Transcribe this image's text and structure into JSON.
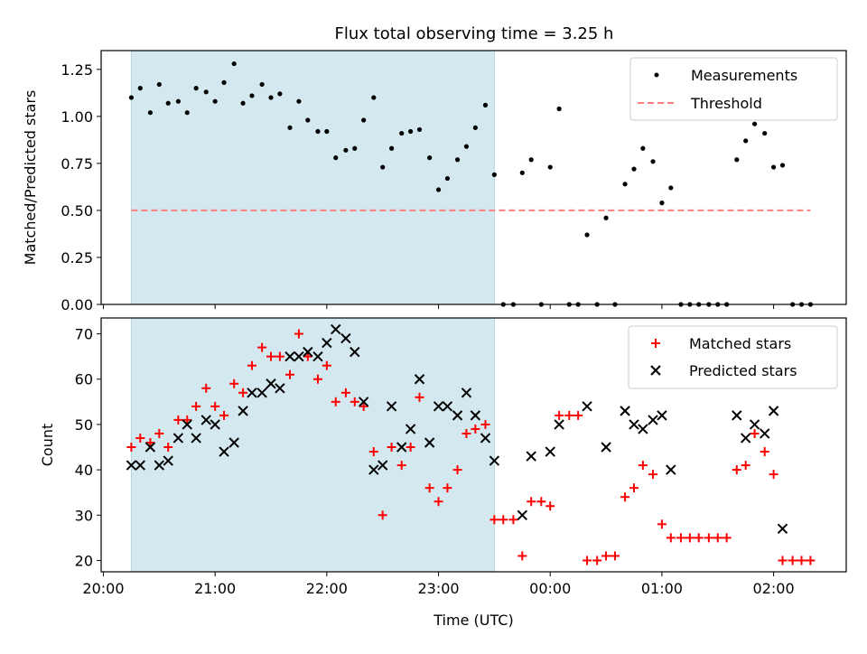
{
  "figure": {
    "title": "Flux total observing time = 3.25 h"
  },
  "chart_data": [
    {
      "type": "scatter",
      "ylabel": "Matched/Predicted stars",
      "xlabel": "",
      "ylim": [
        0,
        1.35
      ],
      "yticks": [
        0.0,
        0.25,
        0.5,
        0.75,
        1.0,
        1.25
      ],
      "ytick_labels": [
        "0.00",
        "0.25",
        "0.50",
        "0.75",
        "1.00",
        "1.25"
      ],
      "xlim_hours": [
        19.98,
        26.65
      ],
      "shaded_span_hours": [
        20.25,
        23.5
      ],
      "shaded_color": "#d3e9ef",
      "legend_position": "top-right",
      "legend": [
        {
          "key": "measurements",
          "label": "Measurements",
          "marker": "dot",
          "color": "#000000"
        },
        {
          "key": "threshold",
          "label": "Threshold",
          "marker": "dashed-line",
          "color": "#ff7f7f"
        }
      ],
      "threshold": {
        "y": 0.5,
        "x_range_hours": [
          20.25,
          26.33
        ]
      },
      "series": [
        {
          "name": "Measurements",
          "color": "#000000",
          "x_hours": [
            20.25,
            20.33,
            20.42,
            20.5,
            20.58,
            20.67,
            20.75,
            20.83,
            20.92,
            21.0,
            21.08,
            21.17,
            21.25,
            21.33,
            21.42,
            21.5,
            21.58,
            21.67,
            21.75,
            21.83,
            21.92,
            22.0,
            22.08,
            22.17,
            22.25,
            22.33,
            22.42,
            22.5,
            22.58,
            22.67,
            22.75,
            22.83,
            22.92,
            23.0,
            23.08,
            23.17,
            23.25,
            23.33,
            23.42,
            23.5,
            23.58,
            23.67,
            23.75,
            23.83,
            23.92,
            24.0,
            24.08,
            24.17,
            24.25,
            24.33,
            24.42,
            24.5,
            24.58,
            24.67,
            24.75,
            24.83,
            24.92,
            25.0,
            25.08,
            25.17,
            25.25,
            25.33,
            25.42,
            25.5,
            25.58,
            25.67,
            25.75,
            25.83,
            25.92,
            26.0,
            26.08,
            26.17,
            26.25,
            26.33
          ],
          "y": [
            1.1,
            1.15,
            1.02,
            1.17,
            1.07,
            1.08,
            1.02,
            1.15,
            1.13,
            1.08,
            1.18,
            1.28,
            1.07,
            1.11,
            1.17,
            1.1,
            1.12,
            0.94,
            1.08,
            0.98,
            0.92,
            0.92,
            0.78,
            0.82,
            0.83,
            0.98,
            1.1,
            0.73,
            0.83,
            0.91,
            0.92,
            0.93,
            0.78,
            0.61,
            0.67,
            0.77,
            0.84,
            0.94,
            1.06,
            0.69,
            0.0,
            0.0,
            0.7,
            0.77,
            0.0,
            0.73,
            1.04,
            0.0,
            0.0,
            0.37,
            0.0,
            0.46,
            0.0,
            0.64,
            0.72,
            0.83,
            0.76,
            0.54,
            0.62,
            0.0,
            0.0,
            0.0,
            0.0,
            0.0,
            0.0,
            0.77,
            0.87,
            0.96,
            0.91,
            0.73,
            0.74,
            0.0,
            0.0,
            0.0
          ]
        }
      ]
    },
    {
      "type": "scatter",
      "ylabel": "Count",
      "xlabel": "Time (UTC)",
      "ylim": [
        17.5,
        73.5
      ],
      "yticks": [
        20,
        30,
        40,
        50,
        60,
        70
      ],
      "ytick_labels": [
        "20",
        "30",
        "40",
        "50",
        "60",
        "70"
      ],
      "xlim_hours": [
        19.98,
        26.65
      ],
      "xticks_hours": [
        20,
        21,
        22,
        23,
        24,
        25,
        26
      ],
      "xtick_labels": [
        "20:00",
        "21:00",
        "22:00",
        "23:00",
        "00:00",
        "01:00",
        "02:00"
      ],
      "shaded_span_hours": [
        20.25,
        23.5
      ],
      "shaded_color": "#d3e9ef",
      "legend_position": "top-right",
      "legend": [
        {
          "key": "matched",
          "label": "Matched stars",
          "marker": "plus",
          "color": "#ff0000"
        },
        {
          "key": "predicted",
          "label": "Predicted stars",
          "marker": "x",
          "color": "#000000"
        }
      ],
      "series": [
        {
          "name": "Matched stars",
          "marker": "plus",
          "color": "#ff0000",
          "x_hours": [
            20.25,
            20.33,
            20.42,
            20.5,
            20.58,
            20.67,
            20.75,
            20.83,
            20.92,
            21.0,
            21.08,
            21.17,
            21.25,
            21.33,
            21.42,
            21.5,
            21.58,
            21.67,
            21.75,
            21.83,
            21.92,
            22.0,
            22.08,
            22.17,
            22.25,
            22.33,
            22.42,
            22.5,
            22.58,
            22.67,
            22.75,
            22.83,
            22.92,
            23.0,
            23.08,
            23.17,
            23.25,
            23.33,
            23.42,
            23.5,
            23.58,
            23.67,
            23.75,
            23.83,
            23.92,
            24.0,
            24.08,
            24.17,
            24.25,
            24.33,
            24.42,
            24.5,
            24.58,
            24.67,
            24.75,
            24.83,
            24.92,
            25.0,
            25.08,
            25.17,
            25.25,
            25.33,
            25.42,
            25.5,
            25.58,
            25.67,
            25.75,
            25.83,
            25.92,
            26.0,
            26.08,
            26.17,
            26.25,
            26.33
          ],
          "y": [
            45,
            47,
            46,
            48,
            45,
            51,
            51,
            54,
            58,
            54,
            52,
            59,
            57,
            63,
            67,
            65,
            65,
            61,
            70,
            65,
            60,
            63,
            55,
            57,
            55,
            54,
            44,
            30,
            45,
            41,
            45,
            56,
            36,
            33,
            36,
            40,
            48,
            49,
            50,
            29,
            29,
            29,
            21,
            33,
            33,
            32,
            52,
            52,
            52,
            20,
            20,
            21,
            21,
            34,
            36,
            41,
            39,
            28,
            25,
            25,
            25,
            25,
            25,
            25,
            25,
            40,
            41,
            48,
            44,
            39,
            20,
            20,
            20,
            20
          ]
        },
        {
          "name": "Predicted stars",
          "marker": "x",
          "color": "#000000",
          "x_hours": [
            20.25,
            20.33,
            20.42,
            20.5,
            20.58,
            20.67,
            20.75,
            20.83,
            20.92,
            21.0,
            21.08,
            21.17,
            21.25,
            21.33,
            21.42,
            21.5,
            21.58,
            21.67,
            21.75,
            21.83,
            21.92,
            22.0,
            22.08,
            22.17,
            22.25,
            22.33,
            22.42,
            22.5,
            22.58,
            22.67,
            22.75,
            22.83,
            22.92,
            23.0,
            23.08,
            23.17,
            23.25,
            23.33,
            23.42,
            23.5,
            23.75,
            23.83,
            24.0,
            24.08,
            24.33,
            24.5,
            24.67,
            24.75,
            24.83,
            24.92,
            25.0,
            25.08,
            25.67,
            25.75,
            25.83,
            25.92,
            26.0,
            26.08
          ],
          "y": [
            41,
            41,
            45,
            41,
            42,
            47,
            50,
            47,
            51,
            50,
            44,
            46,
            53,
            57,
            57,
            59,
            58,
            65,
            65,
            66,
            65,
            68,
            71,
            69,
            66,
            55,
            40,
            41,
            54,
            45,
            49,
            60,
            46,
            54,
            54,
            52,
            57,
            52,
            47,
            42,
            30,
            43,
            44,
            50,
            54,
            45,
            53,
            50,
            49,
            51,
            52,
            40,
            52,
            47,
            50,
            48,
            53,
            27
          ]
        }
      ]
    }
  ]
}
